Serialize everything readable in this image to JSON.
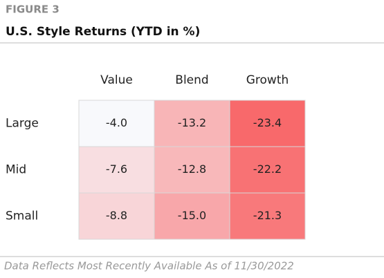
{
  "chart_data": {
    "type": "heatmap",
    "label": "FIGURE 3",
    "title": "U.S. Style Returns (YTD in %)",
    "x_categories": [
      "Value",
      "Blend",
      "Growth"
    ],
    "y_categories": [
      "Large",
      "Mid",
      "Small"
    ],
    "values": [
      [
        -4.0,
        -13.2,
        -23.4
      ],
      [
        -7.6,
        -12.8,
        -22.2
      ],
      [
        -8.8,
        -15.0,
        -21.3
      ]
    ],
    "value_labels": [
      [
        "-4.0",
        "-13.2",
        "-23.4"
      ],
      [
        "-7.6",
        "-12.8",
        "-22.2"
      ],
      [
        "-8.8",
        "-15.0",
        "-21.3"
      ]
    ],
    "colors": [
      "#f8f9fc",
      "#f8696b"
    ],
    "note": "Data Reflects Most Recently Available As of 11/30/2022"
  }
}
